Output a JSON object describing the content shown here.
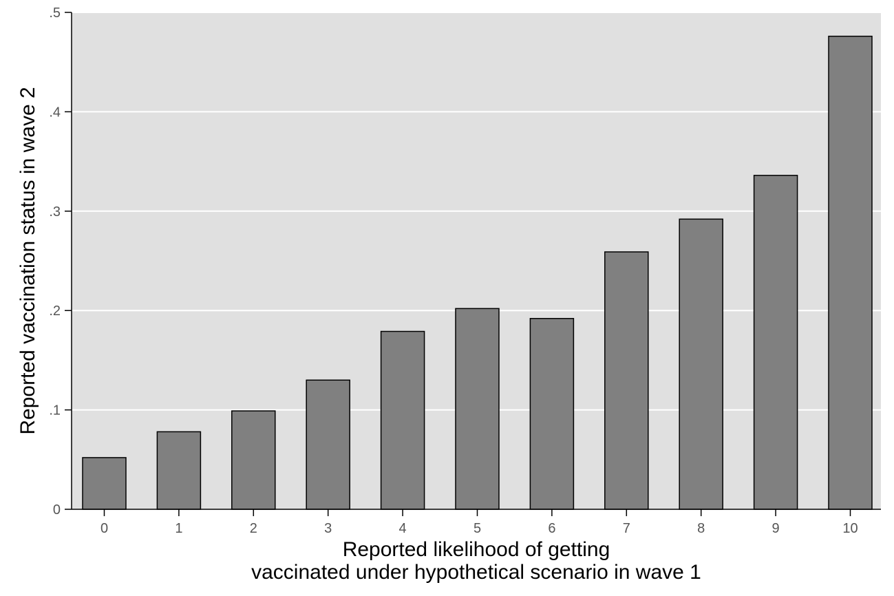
{
  "chart_data": {
    "type": "bar",
    "title": "",
    "xlabel_lines": [
      "Reported likelihood of getting",
      "vaccinated under hypothetical scenario in wave 1"
    ],
    "ylabel": "Reported vaccination status in wave 2",
    "categories": [
      "0",
      "1",
      "2",
      "3",
      "4",
      "5",
      "6",
      "7",
      "8",
      "9",
      "10"
    ],
    "values": [
      0.052,
      0.078,
      0.099,
      0.13,
      0.179,
      0.202,
      0.192,
      0.259,
      0.292,
      0.336,
      0.476
    ],
    "ylim": [
      0,
      0.5
    ],
    "yticks": [
      0,
      0.1,
      0.2,
      0.3,
      0.4,
      0.5
    ],
    "ytick_labels": [
      "0",
      ".1",
      ".2",
      ".3",
      ".4",
      ".5"
    ],
    "grid": true,
    "legend": "none",
    "colors": {
      "bar_fill": "#808080",
      "bar_stroke": "#000000",
      "plot_background": "#e0e0e0",
      "gridline": "#ffffff",
      "axis": "#000000"
    }
  }
}
